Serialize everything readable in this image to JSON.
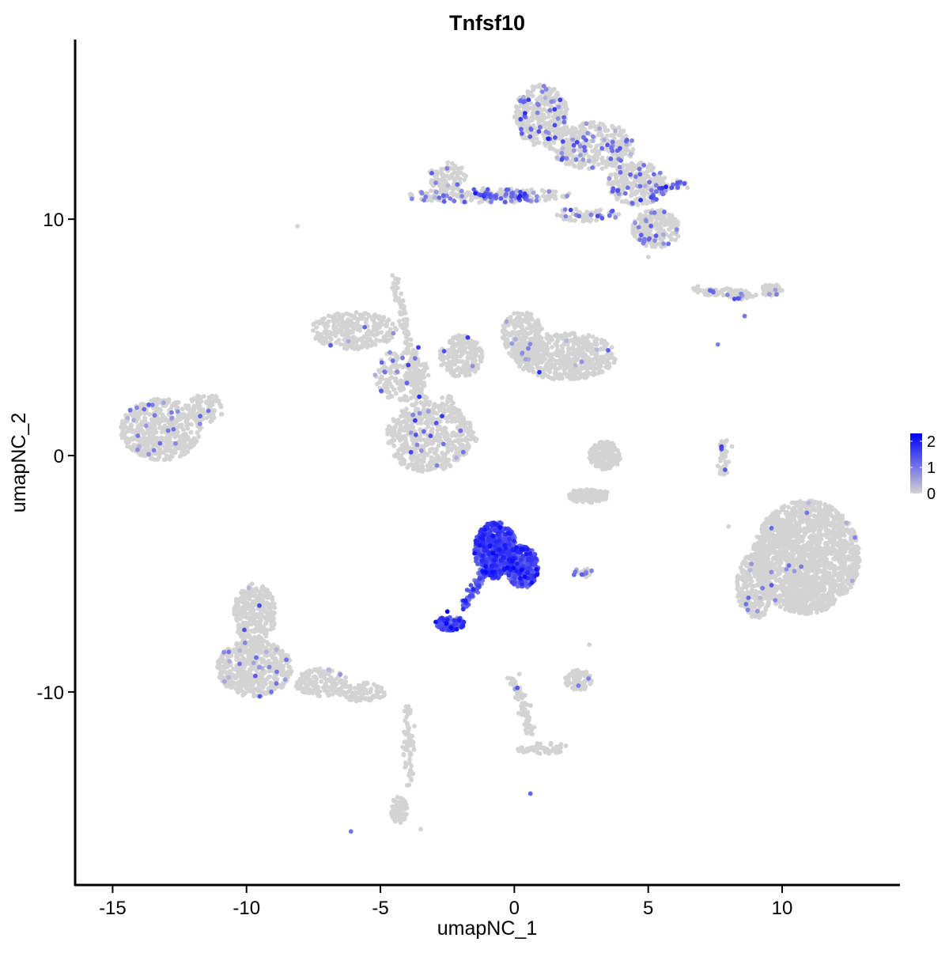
{
  "chart_data": {
    "type": "scatter",
    "title": "Tnfsf10",
    "xlabel": "umapNC_1",
    "ylabel": "umapNC_2",
    "xlim": [
      -16.4,
      14.4
    ],
    "ylim": [
      -18.2,
      17.6
    ],
    "x_ticks": [
      -15,
      -10,
      -5,
      0,
      5,
      10
    ],
    "x_tick_labels": [
      "-15",
      "-10",
      "-5",
      "0",
      "5",
      "10"
    ],
    "y_ticks": [
      -10,
      0,
      10
    ],
    "y_tick_labels": [
      "-10",
      "0",
      "10"
    ],
    "grid": false,
    "legend": {
      "position": "right",
      "type": "colorbar",
      "ticks": [
        0,
        1,
        2
      ],
      "tick_labels": [
        "0",
        "1",
        "2"
      ],
      "range": [
        0,
        2.3
      ],
      "low_color": "#D3D3D3",
      "high_color": "#0000FF"
    },
    "clusters": [
      {
        "cx": -13.2,
        "cy": 1.1,
        "rx": 1.5,
        "ry": 1.3,
        "n": 550,
        "expr_frac": 0.05,
        "expr_mean": 0.9
      },
      {
        "cx": -11.5,
        "cy": 2.0,
        "rx": 0.7,
        "ry": 0.6,
        "n": 80,
        "expr_frac": 0.03,
        "expr_mean": 0.8
      },
      {
        "cx": -6.0,
        "cy": 5.3,
        "rx": 1.6,
        "ry": 0.8,
        "n": 300,
        "expr_frac": 0.01,
        "expr_mean": 0.8
      },
      {
        "cx": -3.2,
        "cy": 0.8,
        "rx": 1.6,
        "ry": 1.5,
        "n": 500,
        "expr_frac": 0.04,
        "expr_mean": 0.9
      },
      {
        "cx": -4.2,
        "cy": 3.4,
        "rx": 1.0,
        "ry": 1.1,
        "n": 200,
        "expr_frac": 0.02,
        "expr_mean": 0.8
      },
      {
        "cx": -2.0,
        "cy": 4.2,
        "rx": 0.8,
        "ry": 0.9,
        "n": 200,
        "expr_frac": 0.03,
        "expr_mean": 0.8
      },
      {
        "cx": 0.3,
        "cy": 5.0,
        "rx": 0.8,
        "ry": 1.1,
        "n": 260,
        "expr_frac": 0.02,
        "expr_mean": 0.8
      },
      {
        "cx": 1.9,
        "cy": 4.2,
        "rx": 1.9,
        "ry": 1.0,
        "n": 520,
        "expr_frac": 0.02,
        "expr_mean": 0.8
      },
      {
        "cx": 1.0,
        "cy": 14.4,
        "rx": 1.0,
        "ry": 1.3,
        "n": 350,
        "expr_frac": 0.12,
        "expr_mean": 1.0
      },
      {
        "cx": 2.9,
        "cy": 13.1,
        "rx": 1.6,
        "ry": 1.0,
        "n": 350,
        "expr_frac": 0.1,
        "expr_mean": 1.0
      },
      {
        "cx": 4.6,
        "cy": 11.5,
        "rx": 1.1,
        "ry": 0.9,
        "n": 250,
        "expr_frac": 0.14,
        "expr_mean": 1.0
      },
      {
        "cx": 5.3,
        "cy": 9.6,
        "rx": 0.9,
        "ry": 0.8,
        "n": 200,
        "expr_frac": 0.14,
        "expr_mean": 1.0
      },
      {
        "cx": -1.0,
        "cy": 11.0,
        "rx": 3.2,
        "ry": 0.3,
        "n": 180,
        "expr_frac": 0.2,
        "expr_mean": 1.0
      },
      {
        "cx": -2.5,
        "cy": 11.8,
        "rx": 0.7,
        "ry": 0.6,
        "n": 90,
        "expr_frac": 0.05,
        "expr_mean": 0.8
      },
      {
        "cx": 2.7,
        "cy": 10.2,
        "rx": 1.2,
        "ry": 0.3,
        "n": 70,
        "expr_frac": 0.25,
        "expr_mean": 1.0
      },
      {
        "cx": 10.9,
        "cy": -4.3,
        "rx": 2.0,
        "ry": 2.4,
        "n": 1800,
        "expr_frac": 0.01,
        "expr_mean": 0.9
      },
      {
        "cx": 9.0,
        "cy": -5.5,
        "rx": 0.7,
        "ry": 1.4,
        "n": 250,
        "expr_frac": 0.02,
        "expr_mean": 0.8
      },
      {
        "cx": -9.7,
        "cy": -6.7,
        "rx": 0.8,
        "ry": 1.3,
        "n": 300,
        "expr_frac": 0.02,
        "expr_mean": 0.8
      },
      {
        "cx": -9.7,
        "cy": -9.0,
        "rx": 1.4,
        "ry": 1.2,
        "n": 500,
        "expr_frac": 0.03,
        "expr_mean": 0.8
      },
      {
        "cx": -7.2,
        "cy": -9.6,
        "rx": 1.0,
        "ry": 0.6,
        "n": 150,
        "expr_frac": 0.03,
        "expr_mean": 0.8
      },
      {
        "cx": -5.7,
        "cy": -10.0,
        "rx": 0.9,
        "ry": 0.4,
        "n": 90,
        "expr_frac": 0.03,
        "expr_mean": 0.8
      },
      {
        "cx": -4.3,
        "cy": -15.0,
        "rx": 0.3,
        "ry": 0.6,
        "n": 80,
        "expr_frac": 0.02,
        "expr_mean": 0.8
      },
      {
        "cx": 3.4,
        "cy": 0.0,
        "rx": 0.6,
        "ry": 0.6,
        "n": 200,
        "expr_frac": 0.0,
        "expr_mean": 0.5
      },
      {
        "cx": 2.8,
        "cy": -1.7,
        "rx": 0.8,
        "ry": 0.3,
        "n": 120,
        "expr_frac": 0.0,
        "expr_mean": 0.5
      },
      {
        "cx": -0.7,
        "cy": -4.0,
        "rx": 0.8,
        "ry": 1.2,
        "n": 650,
        "expr_frac": 0.95,
        "expr_mean": 1.35
      },
      {
        "cx": 0.3,
        "cy": -4.7,
        "rx": 0.6,
        "ry": 0.9,
        "n": 350,
        "expr_frac": 0.95,
        "expr_mean": 1.3
      },
      {
        "cx": -2.4,
        "cy": -7.1,
        "rx": 0.55,
        "ry": 0.3,
        "n": 120,
        "expr_frac": 0.9,
        "expr_mean": 1.3
      },
      {
        "cx": 2.4,
        "cy": -9.5,
        "rx": 0.5,
        "ry": 0.45,
        "n": 90,
        "expr_frac": 0.03,
        "expr_mean": 0.8
      },
      {
        "cx": 1.1,
        "cy": -12.4,
        "rx": 1.0,
        "ry": 0.25,
        "n": 60,
        "expr_frac": 0.02,
        "expr_mean": 0.8
      },
      {
        "cx": 8.4,
        "cy": 6.8,
        "rx": 0.4,
        "ry": 0.2,
        "n": 60,
        "expr_frac": 0.1,
        "expr_mean": 0.9
      },
      {
        "cx": 9.6,
        "cy": 7.0,
        "rx": 0.4,
        "ry": 0.25,
        "n": 60,
        "expr_frac": 0.1,
        "expr_mean": 0.9
      }
    ],
    "trails": [
      {
        "x0": -1.4,
        "y0": 11.0,
        "x1": 0.6,
        "y1": 11.0,
        "n": 120,
        "expr_frac": 0.3
      },
      {
        "x0": -4.5,
        "y0": 7.5,
        "x1": -3.3,
        "y1": 1.8,
        "n": 140,
        "expr_frac": 0.02
      },
      {
        "x0": -2.5,
        "y0": 2.4,
        "x1": -1.4,
        "y1": 0.6,
        "n": 60,
        "expr_frac": 0.0
      },
      {
        "x0": -0.7,
        "y0": -4.0,
        "x1": -1.9,
        "y1": -6.5,
        "n": 120,
        "expr_frac": 0.9
      },
      {
        "x0": -0.1,
        "y0": -9.3,
        "x1": 0.7,
        "y1": -11.8,
        "n": 90,
        "expr_frac": 0.02
      },
      {
        "x0": -4.0,
        "y0": -10.6,
        "x1": -3.9,
        "y1": -14.0,
        "n": 60,
        "expr_frac": 0.0
      },
      {
        "x0": 7.8,
        "y0": 0.6,
        "x1": 7.8,
        "y1": -0.9,
        "n": 50,
        "expr_frac": 0.1
      },
      {
        "x0": 2.2,
        "y0": -5.0,
        "x1": 2.9,
        "y1": -4.9,
        "n": 20,
        "expr_frac": 0.5
      },
      {
        "x0": 5.2,
        "y0": 11.2,
        "x1": 6.3,
        "y1": 11.5,
        "n": 50,
        "expr_frac": 0.3
      },
      {
        "x0": 6.6,
        "y0": 7.0,
        "x1": 9.0,
        "y1": 6.8,
        "n": 60,
        "expr_frac": 0.05
      }
    ],
    "points": [
      {
        "x": -2.5,
        "y": -6.6,
        "v": 2.3
      },
      {
        "x": -0.8,
        "y": -3.4,
        "v": 2.1
      },
      {
        "x": 0.0,
        "y": -4.0,
        "v": 2.0
      },
      {
        "x": -8.1,
        "y": 9.7,
        "v": 0
      },
      {
        "x": -6.1,
        "y": -15.9,
        "v": 1.0
      },
      {
        "x": 0.6,
        "y": -14.3,
        "v": 1.2
      },
      {
        "x": 2.8,
        "y": -8.0,
        "v": 0
      },
      {
        "x": 8.0,
        "y": -3.0,
        "v": 0
      },
      {
        "x": 5.0,
        "y": 8.4,
        "v": 0
      },
      {
        "x": 7.6,
        "y": 4.7,
        "v": 0.9
      },
      {
        "x": 8.6,
        "y": 5.9,
        "v": 1.0
      },
      {
        "x": -3.5,
        "y": -15.8,
        "v": 0
      }
    ]
  }
}
